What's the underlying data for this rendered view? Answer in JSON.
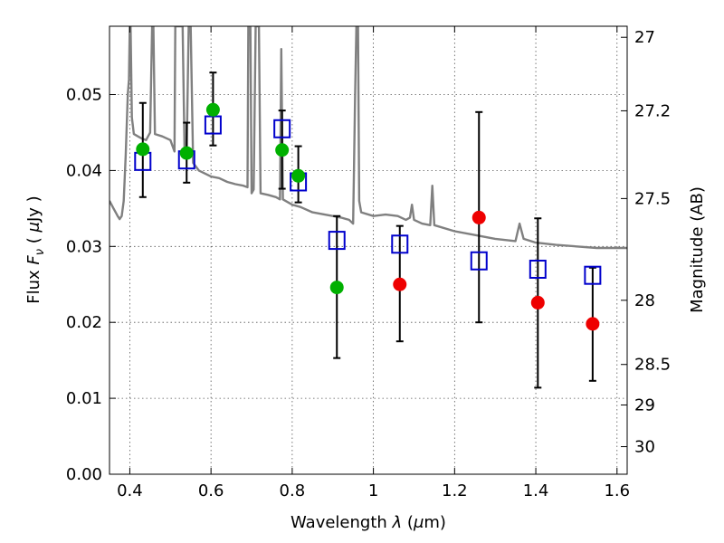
{
  "chart_data": {
    "type": "scatter",
    "xlabel": {
      "pre": "Wavelength  ",
      "sym": "λ",
      "unit_open": " (",
      "unit_sym": "μ",
      "unit_rest": "m)"
    },
    "ylabel": {
      "pre": "Flux  ",
      "sym": "F",
      "sub": "ν",
      "mid": "  ( ",
      "unit_sym": "μ",
      "unit_rest": "Jy )"
    },
    "y2label": "Magnitude (AB)",
    "xlim": [
      0.35,
      1.625
    ],
    "ylim": [
      0.0,
      0.059
    ],
    "grid": true,
    "x_ticks": [
      {
        "v": 0.4,
        "label": "0.4"
      },
      {
        "v": 0.6,
        "label": "0.6"
      },
      {
        "v": 0.8,
        "label": "0.8"
      },
      {
        "v": 1.0,
        "label": "1"
      },
      {
        "v": 1.2,
        "label": "1.2"
      },
      {
        "v": 1.4,
        "label": "1.4"
      },
      {
        "v": 1.6,
        "label": "1.6"
      }
    ],
    "y_ticks": [
      {
        "v": 0.0,
        "label": "0.00"
      },
      {
        "v": 0.01,
        "label": "0.01"
      },
      {
        "v": 0.02,
        "label": "0.02"
      },
      {
        "v": 0.03,
        "label": "0.03"
      },
      {
        "v": 0.04,
        "label": "0.04"
      },
      {
        "v": 0.05,
        "label": "0.05"
      }
    ],
    "mag_ticks": [
      {
        "mag": 27,
        "label": "27"
      },
      {
        "mag": 27.2,
        "label": "27.2"
      },
      {
        "mag": 27.5,
        "label": "27.5"
      },
      {
        "mag": 28,
        "label": "28"
      },
      {
        "mag": 28.5,
        "label": "28.5"
      },
      {
        "mag": 29,
        "label": "29"
      },
      {
        "mag": 30,
        "label": "30"
      }
    ],
    "colors": {
      "model": "#808080",
      "green": "#00b000",
      "red": "#ee0000",
      "square": "#0000cc",
      "errorbar": "#000000"
    },
    "model_sed": {
      "name": "model spectrum",
      "points": [
        [
          0.35,
          0.036
        ],
        [
          0.36,
          0.035
        ],
        [
          0.37,
          0.034
        ],
        [
          0.375,
          0.0336
        ],
        [
          0.38,
          0.034
        ],
        [
          0.385,
          0.036
        ],
        [
          0.39,
          0.042
        ],
        [
          0.395,
          0.05
        ],
        [
          0.398,
          0.052
        ],
        [
          0.4,
          0.059
        ],
        [
          0.402,
          0.059
        ],
        [
          0.405,
          0.047
        ],
        [
          0.41,
          0.0448
        ],
        [
          0.42,
          0.0445
        ],
        [
          0.43,
          0.0442
        ],
        [
          0.44,
          0.044
        ],
        [
          0.445,
          0.0445
        ],
        [
          0.45,
          0.045
        ],
        [
          0.455,
          0.059
        ],
        [
          0.458,
          0.059
        ],
        [
          0.462,
          0.0448
        ],
        [
          0.48,
          0.0445
        ],
        [
          0.5,
          0.044
        ],
        [
          0.51,
          0.0425
        ],
        [
          0.512,
          0.059
        ],
        [
          0.52,
          0.059
        ],
        [
          0.525,
          0.059
        ],
        [
          0.53,
          0.059
        ],
        [
          0.535,
          0.042
        ],
        [
          0.54,
          0.0418
        ],
        [
          0.545,
          0.059
        ],
        [
          0.55,
          0.059
        ],
        [
          0.556,
          0.041
        ],
        [
          0.57,
          0.04
        ],
        [
          0.6,
          0.0392
        ],
        [
          0.62,
          0.039
        ],
        [
          0.64,
          0.0385
        ],
        [
          0.66,
          0.0382
        ],
        [
          0.68,
          0.038
        ],
        [
          0.69,
          0.0378
        ],
        [
          0.692,
          0.059
        ],
        [
          0.697,
          0.059
        ],
        [
          0.7,
          0.037
        ],
        [
          0.705,
          0.0375
        ],
        [
          0.71,
          0.059
        ],
        [
          0.718,
          0.059
        ],
        [
          0.722,
          0.037
        ],
        [
          0.74,
          0.0368
        ],
        [
          0.76,
          0.0365
        ],
        [
          0.77,
          0.0362
        ],
        [
          0.773,
          0.056
        ],
        [
          0.777,
          0.0362
        ],
        [
          0.8,
          0.0355
        ],
        [
          0.82,
          0.0352
        ],
        [
          0.85,
          0.0345
        ],
        [
          0.88,
          0.0342
        ],
        [
          0.9,
          0.034
        ],
        [
          0.92,
          0.0338
        ],
        [
          0.94,
          0.0335
        ],
        [
          0.95,
          0.033
        ],
        [
          0.955,
          0.05
        ],
        [
          0.958,
          0.059
        ],
        [
          0.962,
          0.059
        ],
        [
          0.965,
          0.036
        ],
        [
          0.97,
          0.0345
        ],
        [
          1.0,
          0.034
        ],
        [
          1.03,
          0.0342
        ],
        [
          1.06,
          0.034
        ],
        [
          1.08,
          0.0335
        ],
        [
          1.09,
          0.0338
        ],
        [
          1.095,
          0.0355
        ],
        [
          1.1,
          0.0335
        ],
        [
          1.12,
          0.033
        ],
        [
          1.14,
          0.0328
        ],
        [
          1.145,
          0.038
        ],
        [
          1.15,
          0.0328
        ],
        [
          1.2,
          0.032
        ],
        [
          1.25,
          0.0315
        ],
        [
          1.3,
          0.031
        ],
        [
          1.35,
          0.0307
        ],
        [
          1.36,
          0.033
        ],
        [
          1.37,
          0.031
        ],
        [
          1.4,
          0.0305
        ],
        [
          1.45,
          0.0302
        ],
        [
          1.5,
          0.03
        ],
        [
          1.55,
          0.0298
        ],
        [
          1.6,
          0.0298
        ],
        [
          1.625,
          0.0298
        ]
      ]
    },
    "observed_points": [
      {
        "x": 0.432,
        "y": 0.0428,
        "yerr_lo": 0.0063,
        "yerr_hi": 0.0061,
        "color": "green"
      },
      {
        "x": 0.54,
        "y": 0.0423,
        "yerr_lo": 0.0039,
        "yerr_hi": 0.004,
        "color": "green"
      },
      {
        "x": 0.605,
        "y": 0.048,
        "yerr_lo": 0.0047,
        "yerr_hi": 0.0049,
        "color": "green"
      },
      {
        "x": 0.775,
        "y": 0.0427,
        "yerr_lo": 0.0051,
        "yerr_hi": 0.0052,
        "color": "green"
      },
      {
        "x": 0.815,
        "y": 0.0393,
        "yerr_lo": 0.0035,
        "yerr_hi": 0.0039,
        "color": "green"
      },
      {
        "x": 0.91,
        "y": 0.0246,
        "yerr_lo": 0.0093,
        "yerr_hi": 0.0094,
        "color": "green"
      },
      {
        "x": 1.065,
        "y": 0.025,
        "yerr_lo": 0.0075,
        "yerr_hi": 0.0077,
        "color": "red"
      },
      {
        "x": 1.26,
        "y": 0.0338,
        "yerr_lo": 0.0138,
        "yerr_hi": 0.0139,
        "color": "red"
      },
      {
        "x": 1.405,
        "y": 0.0226,
        "yerr_lo": 0.0112,
        "yerr_hi": 0.0111,
        "color": "red"
      },
      {
        "x": 1.54,
        "y": 0.0198,
        "yerr_lo": 0.0075,
        "yerr_hi": 0.0074,
        "color": "red"
      }
    ],
    "model_photometry": [
      {
        "x": 0.432,
        "y": 0.0412
      },
      {
        "x": 0.54,
        "y": 0.0414
      },
      {
        "x": 0.605,
        "y": 0.046
      },
      {
        "x": 0.775,
        "y": 0.0455
      },
      {
        "x": 0.815,
        "y": 0.0385
      },
      {
        "x": 0.91,
        "y": 0.0308
      },
      {
        "x": 1.065,
        "y": 0.0303
      },
      {
        "x": 1.26,
        "y": 0.0281
      },
      {
        "x": 1.405,
        "y": 0.027
      },
      {
        "x": 1.54,
        "y": 0.0262
      }
    ]
  }
}
